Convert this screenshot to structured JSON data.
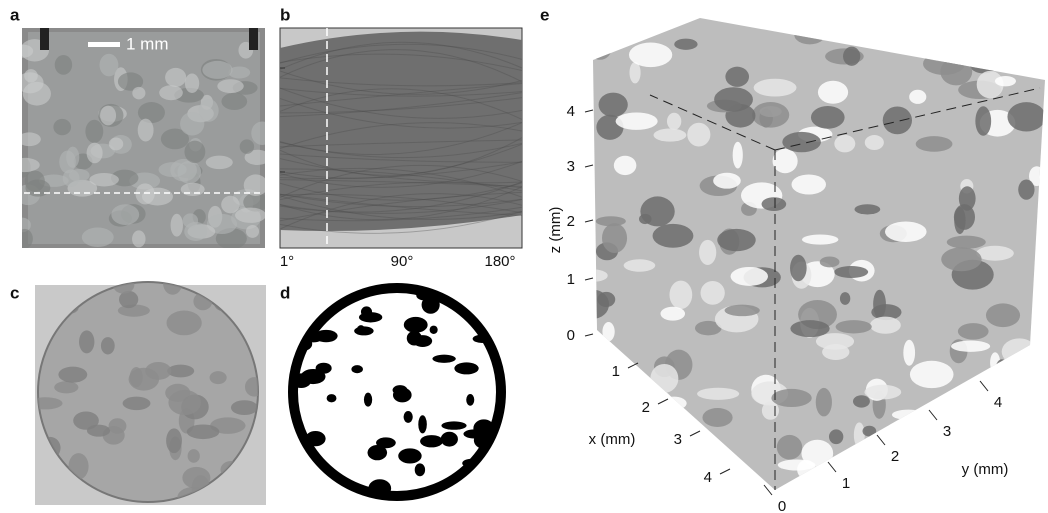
{
  "panels": {
    "a": {
      "label": "a",
      "scale_bar": "1 mm"
    },
    "b": {
      "label": "b",
      "x_tick_labels": [
        "1°",
        "90°",
        "180°"
      ]
    },
    "c": {
      "label": "c"
    },
    "d": {
      "label": "d"
    },
    "e": {
      "label": "e",
      "z_axis": {
        "label": "z (mm)",
        "ticks": [
          0,
          1,
          2,
          3,
          4
        ]
      },
      "x_axis": {
        "label": "x (mm)",
        "ticks": [
          1,
          2,
          3,
          4
        ]
      },
      "y_axis": {
        "label": "y (mm)",
        "ticks": [
          0,
          1,
          2,
          3,
          4
        ]
      }
    }
  }
}
